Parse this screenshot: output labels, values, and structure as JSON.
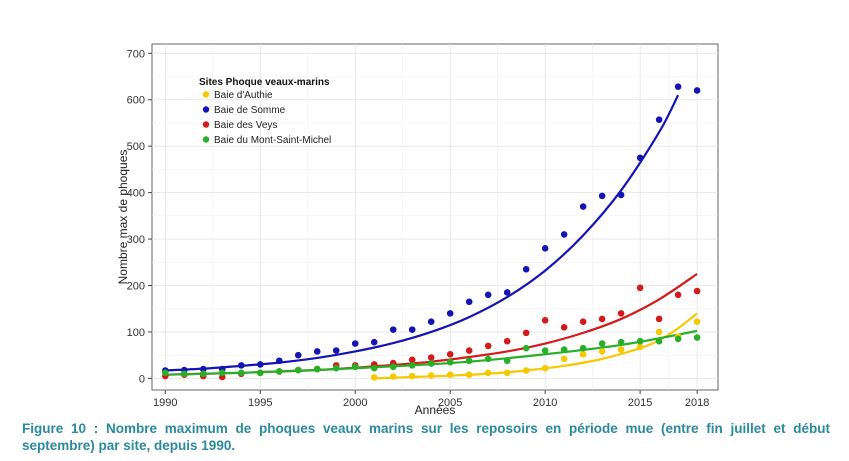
{
  "caption": "Figure 10 : Nombre maximum de phoques veaux marins sur les reposoirs en période mue (entre fin juillet et début septembre) par site, depuis 1990.",
  "chart_data": {
    "type": "scatter",
    "title": "",
    "xlabel": "Années",
    "ylabel": "Nombre max de phoques",
    "xlim": [
      1989.3,
      2019.1
    ],
    "ylim": [
      -25,
      720
    ],
    "x_ticks": [
      1990,
      1995,
      2000,
      2005,
      2010,
      2015,
      2018
    ],
    "y_ticks": [
      0,
      100,
      200,
      300,
      400,
      500,
      600,
      700
    ],
    "grid": true,
    "legend": {
      "title": "Sites Phoque veaux-marins",
      "placement": "top-left"
    },
    "series": [
      {
        "name": "Baie d'Authie",
        "color": "#f5c800",
        "x": [
          2001,
          2002,
          2003,
          2004,
          2005,
          2006,
          2007,
          2008,
          2009,
          2010,
          2011,
          2012,
          2013,
          2014,
          2015,
          2016,
          2017,
          2018
        ],
        "y": [
          2,
          4,
          5,
          6,
          8,
          8,
          12,
          12,
          17,
          22,
          42,
          52,
          58,
          62,
          68,
          100,
          90,
          122
        ],
        "trend": [
          [
            2001,
            0
          ],
          [
            2003,
            3
          ],
          [
            2005,
            6
          ],
          [
            2007,
            10
          ],
          [
            2009,
            17
          ],
          [
            2011,
            27
          ],
          [
            2013,
            42
          ],
          [
            2015,
            65
          ],
          [
            2016,
            82
          ],
          [
            2017,
            108
          ],
          [
            2018,
            140
          ]
        ]
      },
      {
        "name": "Baie de Somme",
        "color": "#1414b4",
        "x": [
          1990,
          1991,
          1992,
          1993,
          1994,
          1995,
          1996,
          1997,
          1998,
          1999,
          2000,
          2001,
          2002,
          2003,
          2004,
          2005,
          2006,
          2007,
          2008,
          2009,
          2010,
          2011,
          2012,
          2013,
          2014,
          2015,
          2016,
          2017,
          2018
        ],
        "y": [
          17,
          18,
          20,
          20,
          28,
          30,
          38,
          50,
          58,
          60,
          75,
          78,
          105,
          105,
          122,
          140,
          165,
          180,
          185,
          235,
          280,
          310,
          370,
          393,
          395,
          475,
          557,
          628,
          620
        ],
        "trend": [
          [
            1990,
            17
          ],
          [
            1992,
            21
          ],
          [
            1994,
            27
          ],
          [
            1996,
            34
          ],
          [
            1998,
            44
          ],
          [
            2000,
            58
          ],
          [
            2002,
            76
          ],
          [
            2004,
            100
          ],
          [
            2006,
            132
          ],
          [
            2008,
            175
          ],
          [
            2010,
            232
          ],
          [
            2012,
            308
          ],
          [
            2014,
            405
          ],
          [
            2016,
            530
          ],
          [
            2017,
            610
          ]
        ]
      },
      {
        "name": "Baie des Veys",
        "color": "#d41a1a",
        "x": [
          1990,
          1991,
          1992,
          1993,
          1994,
          1995,
          1996,
          1997,
          1998,
          1999,
          2000,
          2001,
          2002,
          2003,
          2004,
          2005,
          2006,
          2007,
          2008,
          2009,
          2010,
          2011,
          2012,
          2013,
          2014,
          2015,
          2016,
          2017,
          2018
        ],
        "y": [
          5,
          8,
          5,
          3,
          10,
          12,
          15,
          18,
          20,
          28,
          28,
          30,
          33,
          40,
          45,
          52,
          60,
          70,
          80,
          98,
          125,
          110,
          122,
          128,
          140,
          195,
          128,
          180,
          188
        ],
        "trend": [
          [
            1990,
            8
          ],
          [
            1992,
            10
          ],
          [
            1994,
            12
          ],
          [
            1996,
            15
          ],
          [
            1998,
            18
          ],
          [
            2000,
            23
          ],
          [
            2002,
            29
          ],
          [
            2004,
            36
          ],
          [
            2006,
            46
          ],
          [
            2008,
            58
          ],
          [
            2010,
            75
          ],
          [
            2012,
            98
          ],
          [
            2014,
            128
          ],
          [
            2016,
            170
          ],
          [
            2018,
            225
          ]
        ]
      },
      {
        "name": "Baie du Mont-Saint-Michel",
        "color": "#27b027",
        "x": [
          1990,
          1991,
          1992,
          1993,
          1994,
          1995,
          1996,
          1997,
          1998,
          1999,
          2000,
          2001,
          2002,
          2003,
          2004,
          2005,
          2006,
          2007,
          2008,
          2009,
          2010,
          2011,
          2012,
          2013,
          2014,
          2015,
          2016,
          2017,
          2018
        ],
        "y": [
          12,
          10,
          10,
          12,
          12,
          12,
          15,
          18,
          20,
          22,
          25,
          22,
          25,
          28,
          32,
          35,
          38,
          42,
          38,
          65,
          60,
          62,
          65,
          75,
          78,
          80,
          80,
          85,
          88
        ],
        "trend": [
          [
            1990,
            8
          ],
          [
            1994,
            12
          ],
          [
            1998,
            18
          ],
          [
            2002,
            26
          ],
          [
            2006,
            36
          ],
          [
            2010,
            52
          ],
          [
            2014,
            72
          ],
          [
            2018,
            102
          ]
        ]
      }
    ]
  }
}
